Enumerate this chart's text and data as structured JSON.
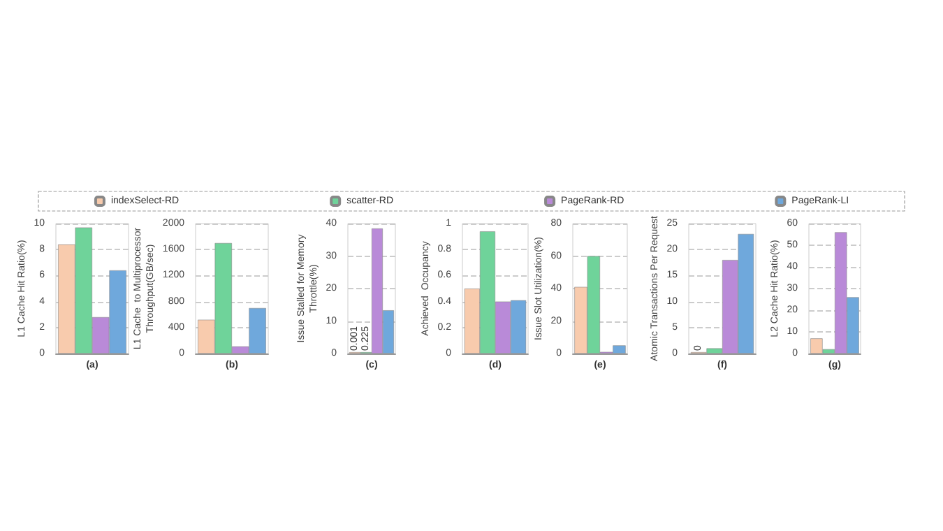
{
  "chart_data": [
    {
      "type": "bar",
      "categories": [
        "(a)"
      ],
      "ylabel": "L1 Cache Hit Ratio(%)",
      "ylim": [
        0,
        10
      ],
      "yticks": [
        0,
        2,
        4,
        6,
        8,
        10
      ],
      "grid": "y",
      "legend": "top",
      "series": [
        {
          "name": "indexSelect-RD",
          "color": "#f8cbad",
          "values": [
            8.4
          ]
        },
        {
          "name": "scatter-RD",
          "color": "#6fd39a",
          "values": [
            9.7
          ]
        },
        {
          "name": "PageRank-RD",
          "color": "#b98ad8",
          "values": [
            2.8
          ]
        },
        {
          "name": "PageRank-LI",
          "color": "#6fa8dc",
          "values": [
            6.4
          ]
        }
      ]
    },
    {
      "type": "bar",
      "categories": [
        "(b)"
      ],
      "ylabel": "L1 Cache  to Multiprocessor Throughput(GB/sec)",
      "ylim": [
        0,
        2000
      ],
      "yticks": [
        0,
        400,
        800,
        1200,
        1600,
        2000
      ],
      "grid": "y",
      "series": [
        {
          "name": "indexSelect-RD",
          "color": "#f8cbad",
          "values": [
            520
          ]
        },
        {
          "name": "scatter-RD",
          "color": "#6fd39a",
          "values": [
            1700
          ]
        },
        {
          "name": "PageRank-RD",
          "color": "#b98ad8",
          "values": [
            110
          ]
        },
        {
          "name": "PageRank-LI",
          "color": "#6fa8dc",
          "values": [
            700
          ]
        }
      ]
    },
    {
      "type": "bar",
      "categories": [
        "(c)"
      ],
      "ylabel": "Issue Stalled for Memory Throttle(%)",
      "ylim": [
        0,
        40
      ],
      "yticks": [
        0,
        10,
        20,
        30,
        40
      ],
      "grid": "y",
      "series": [
        {
          "name": "indexSelect-RD",
          "color": "#f8cbad",
          "values": [
            0.001
          ],
          "value_labels": [
            "0.001"
          ]
        },
        {
          "name": "scatter-RD",
          "color": "#6fd39a",
          "values": [
            0.225
          ],
          "value_labels": [
            "0.225"
          ]
        },
        {
          "name": "PageRank-RD",
          "color": "#b98ad8",
          "values": [
            38.5
          ]
        },
        {
          "name": "PageRank-LI",
          "color": "#6fa8dc",
          "values": [
            13.3
          ]
        }
      ]
    },
    {
      "type": "bar",
      "categories": [
        "(d)"
      ],
      "ylabel": "Achieved  Occupancy",
      "ylim": [
        0,
        1
      ],
      "yticks": [
        0,
        0.2,
        0.4,
        0.6,
        0.8,
        1
      ],
      "grid": "y",
      "series": [
        {
          "name": "indexSelect-RD",
          "color": "#f8cbad",
          "values": [
            0.5
          ]
        },
        {
          "name": "scatter-RD",
          "color": "#6fd39a",
          "values": [
            0.94
          ]
        },
        {
          "name": "PageRank-RD",
          "color": "#b98ad8",
          "values": [
            0.4
          ]
        },
        {
          "name": "PageRank-LI",
          "color": "#6fa8dc",
          "values": [
            0.41
          ]
        }
      ]
    },
    {
      "type": "bar",
      "categories": [
        "(e)"
      ],
      "ylabel": "Issue Slot Utilization(%)",
      "ylim": [
        0,
        80
      ],
      "yticks": [
        0,
        20,
        40,
        60,
        80
      ],
      "grid": "y",
      "series": [
        {
          "name": "indexSelect-RD",
          "color": "#f8cbad",
          "values": [
            41
          ]
        },
        {
          "name": "scatter-RD",
          "color": "#6fd39a",
          "values": [
            60
          ]
        },
        {
          "name": "PageRank-RD",
          "color": "#b98ad8",
          "values": [
            1
          ]
        },
        {
          "name": "PageRank-LI",
          "color": "#6fa8dc",
          "values": [
            5
          ]
        }
      ]
    },
    {
      "type": "bar",
      "categories": [
        "(f)"
      ],
      "ylabel": "Atomic Transactions Per Request",
      "ylim": [
        0,
        25
      ],
      "yticks": [
        0,
        5,
        10,
        15,
        20,
        25
      ],
      "grid": "y",
      "series": [
        {
          "name": "indexSelect-RD",
          "color": "#f8cbad",
          "values": [
            0
          ],
          "value_labels": [
            "0"
          ]
        },
        {
          "name": "scatter-RD",
          "color": "#6fd39a",
          "values": [
            1
          ]
        },
        {
          "name": "PageRank-RD",
          "color": "#b98ad8",
          "values": [
            18
          ]
        },
        {
          "name": "PageRank-LI",
          "color": "#6fa8dc",
          "values": [
            23
          ]
        }
      ]
    },
    {
      "type": "bar",
      "categories": [
        "(g)"
      ],
      "ylabel": "L2 Cache Hit Ratio(%)",
      "ylim": [
        0,
        60
      ],
      "yticks": [
        0,
        10,
        20,
        30,
        40,
        50,
        60
      ],
      "grid": "y",
      "series": [
        {
          "name": "indexSelect-RD",
          "color": "#f8cbad",
          "values": [
            7
          ]
        },
        {
          "name": "scatter-RD",
          "color": "#6fd39a",
          "values": [
            2
          ]
        },
        {
          "name": "PageRank-RD",
          "color": "#b98ad8",
          "values": [
            56
          ]
        },
        {
          "name": "PageRank-LI",
          "color": "#6fa8dc",
          "values": [
            26
          ]
        }
      ]
    }
  ]
}
